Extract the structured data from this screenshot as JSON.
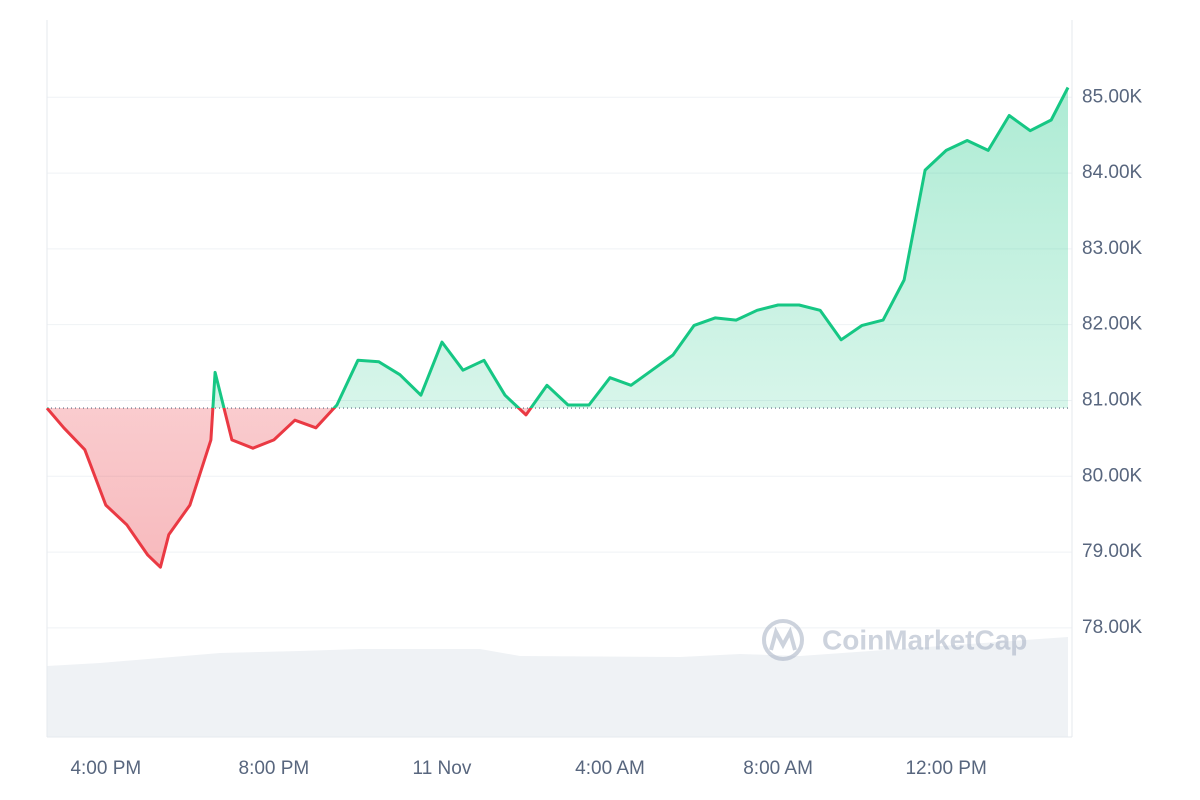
{
  "chart_data": {
    "type": "line",
    "watermark": "CoinMarketCap",
    "x": [
      14.6,
      15.0,
      15.5,
      16.0,
      16.5,
      17.0,
      17.3,
      17.5,
      18.0,
      18.5,
      18.6,
      19.0,
      19.5,
      20.0,
      20.5,
      21.0,
      21.5,
      22.0,
      22.5,
      23.0,
      23.5,
      24.0,
      24.5,
      25.0,
      25.5,
      26.0,
      26.5,
      27.0,
      27.5,
      28.0,
      28.5,
      29.0,
      29.5,
      30.0,
      30.5,
      31.0,
      31.5,
      32.0,
      32.5,
      33.0,
      33.5,
      34.0,
      34.5,
      35.0,
      35.5,
      36.0,
      36.5,
      37.0,
      37.5,
      38.0,
      38.5,
      38.9
    ],
    "values": [
      80.9,
      80.64,
      80.35,
      79.62,
      79.36,
      78.96,
      78.8,
      79.23,
      79.62,
      80.48,
      81.37,
      80.48,
      80.37,
      80.48,
      80.74,
      80.64,
      80.94,
      81.53,
      81.51,
      81.34,
      81.07,
      81.77,
      81.4,
      81.53,
      81.07,
      80.81,
      81.2,
      80.94,
      80.94,
      81.3,
      81.2,
      81.4,
      81.6,
      81.99,
      82.09,
      82.06,
      82.19,
      82.26,
      82.26,
      82.19,
      81.8,
      81.99,
      82.06,
      82.59,
      84.04,
      84.3,
      84.43,
      84.3,
      84.76,
      84.56,
      84.7,
      85.13
    ],
    "baseline": 80.9,
    "up_color": "#16c784",
    "down_color": "#ea3943",
    "xlim": [
      14.6,
      38.9
    ],
    "xticks": [
      {
        "value": 16,
        "label": "4:00 PM"
      },
      {
        "value": 20,
        "label": "8:00 PM"
      },
      {
        "value": 24,
        "label": "11 Nov"
      },
      {
        "value": 28,
        "label": "4:00 AM"
      },
      {
        "value": 32,
        "label": "8:00 AM"
      },
      {
        "value": 36,
        "label": "12:00 PM"
      }
    ],
    "ylim": [
      76.56,
      86.02
    ],
    "yticks": [
      {
        "value": 78,
        "label": "78.00K"
      },
      {
        "value": 79,
        "label": "79.00K"
      },
      {
        "value": 80,
        "label": "80.00K"
      },
      {
        "value": 81,
        "label": "81.00K"
      },
      {
        "value": 82,
        "label": "82.00K"
      },
      {
        "value": 83,
        "label": "83.00K"
      },
      {
        "value": 84,
        "label": "84.00K"
      },
      {
        "value": 85,
        "label": "85.00K"
      }
    ],
    "grid": true
  }
}
